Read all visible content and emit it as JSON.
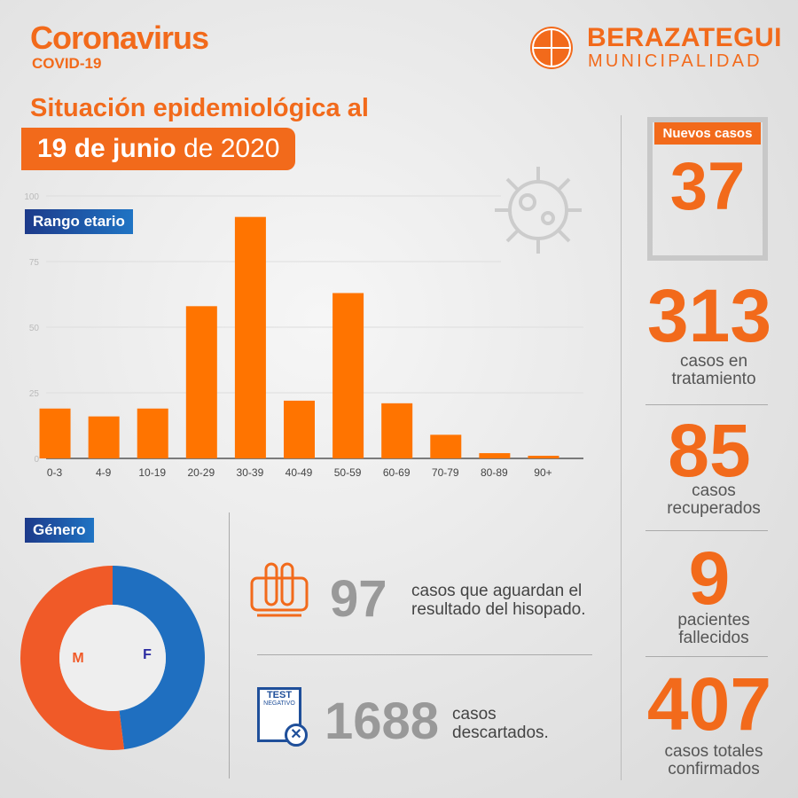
{
  "header": {
    "title": "Coronavirus",
    "subtitle": "COVID-19",
    "org_name": "BERAZATEGUI",
    "org_sub": "MUNICIPALIDAD"
  },
  "situation": {
    "heading": "Situación epidemiológica al",
    "date_bold": "19 de junio",
    "date_rest": " de 2020"
  },
  "age_tag": "Rango etario",
  "gender_tag": "Género",
  "chart_data": [
    {
      "type": "bar",
      "title": "Rango etario",
      "categories": [
        "0-3",
        "4-9",
        "10-19",
        "20-29",
        "30-39",
        "40-49",
        "50-59",
        "60-69",
        "70-79",
        "80-89",
        "90+"
      ],
      "values": [
        19,
        16,
        19,
        58,
        92,
        22,
        63,
        21,
        9,
        2,
        1
      ],
      "ylim": [
        0,
        100
      ],
      "yticks": [
        0,
        25,
        50,
        75,
        100
      ],
      "grid": true,
      "color": "#ff7400"
    },
    {
      "type": "pie",
      "title": "Género",
      "categories": [
        "M",
        "F"
      ],
      "values": [
        52,
        48
      ],
      "colors": [
        "#f05a28",
        "#1f6fc0"
      ],
      "donut": true
    }
  ],
  "stats": {
    "new_label": "Nuevos casos",
    "new_value": "37",
    "treatment_value": "313",
    "treatment_label": "casos en tratamiento",
    "recovered_value": "85",
    "recovered_label": "casos recuperados",
    "deceased_value": "9",
    "deceased_label": "pacientes fallecidos",
    "total_value": "407",
    "total_label": "casos totales confirmados"
  },
  "pending": {
    "value": "97",
    "label": "casos que aguardan el resultado del hisopado.",
    "icon": "test-tubes-icon"
  },
  "discarded": {
    "value": "1688",
    "label": "casos descartados.",
    "icon": "test-negative-icon",
    "icon_text1": "TEST",
    "icon_text2": "NEGATIVO"
  }
}
